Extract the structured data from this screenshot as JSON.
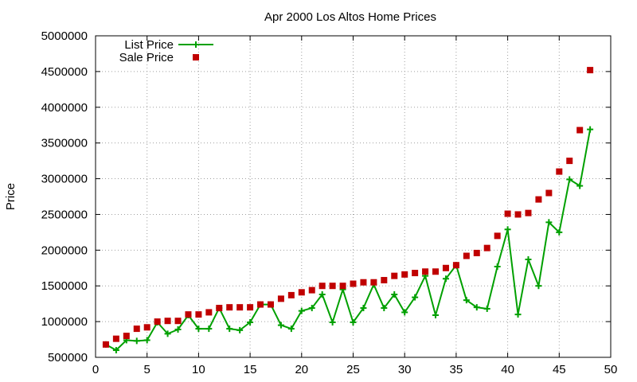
{
  "chart_data": {
    "type": "line",
    "title": "Apr 2000 Los Altos Home Prices",
    "xlabel": "",
    "ylabel": "Price",
    "xlim": [
      0,
      50
    ],
    "ylim": [
      500000,
      5000000
    ],
    "xticks": [
      0,
      5,
      10,
      15,
      20,
      25,
      30,
      35,
      40,
      45,
      50
    ],
    "yticks": [
      500000,
      1000000,
      1500000,
      2000000,
      2500000,
      3000000,
      3500000,
      4000000,
      4500000,
      5000000
    ],
    "grid": true,
    "legend_position": "top-left",
    "x": [
      1,
      2,
      3,
      4,
      5,
      6,
      7,
      8,
      9,
      10,
      11,
      12,
      13,
      14,
      15,
      16,
      17,
      18,
      19,
      20,
      21,
      22,
      23,
      24,
      25,
      26,
      27,
      28,
      29,
      30,
      31,
      32,
      33,
      34,
      35,
      36,
      37,
      38,
      39,
      40,
      41,
      42,
      43,
      44,
      45,
      46,
      47,
      48
    ],
    "series": [
      {
        "name": "List Price",
        "style": "linespoints",
        "color": "#00a000",
        "marker": "plus",
        "values": [
          680000,
          600000,
          740000,
          730000,
          740000,
          990000,
          830000,
          890000,
          1090000,
          900000,
          900000,
          1190000,
          900000,
          880000,
          990000,
          1240000,
          1240000,
          950000,
          900000,
          1150000,
          1190000,
          1380000,
          990000,
          1450000,
          990000,
          1190000,
          1520000,
          1190000,
          1380000,
          1130000,
          1340000,
          1640000,
          1090000,
          1600000,
          1790000,
          1300000,
          1200000,
          1180000,
          1770000,
          2290000,
          1100000,
          1870000,
          1500000,
          2390000,
          2250000,
          2990000,
          2900000,
          3690000
        ]
      },
      {
        "name": "Sale Price",
        "style": "points",
        "color": "#c00000",
        "marker": "square",
        "values": [
          680000,
          760000,
          800000,
          900000,
          920000,
          1000000,
          1010000,
          1010000,
          1100000,
          1100000,
          1130000,
          1190000,
          1200000,
          1200000,
          1200000,
          1240000,
          1240000,
          1320000,
          1370000,
          1410000,
          1440000,
          1500000,
          1500000,
          1500000,
          1530000,
          1550000,
          1550000,
          1580000,
          1640000,
          1660000,
          1680000,
          1700000,
          1700000,
          1750000,
          1790000,
          1920000,
          1960000,
          2030000,
          2200000,
          2510000,
          2500000,
          2520000,
          2710000,
          2800000,
          3100000,
          3250000,
          3680000,
          4520000
        ]
      }
    ]
  }
}
